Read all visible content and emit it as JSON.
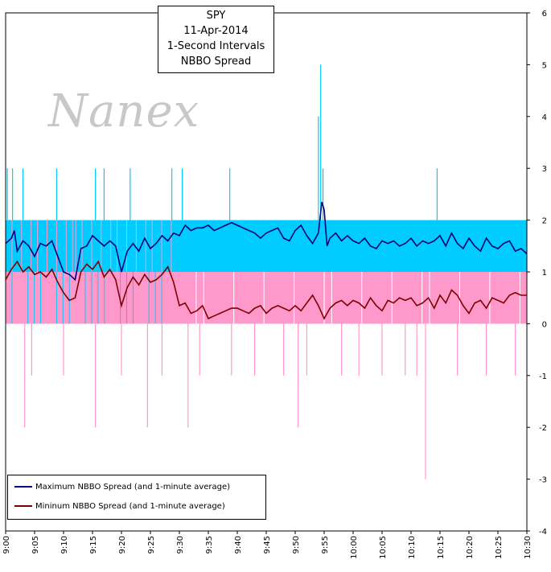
{
  "chart_data": {
    "type": "line",
    "title_lines": [
      "SPY",
      "11-Apr-2014",
      "1-Second Intervals",
      "NBBO Spread"
    ],
    "watermark": "Nanex",
    "x_ticks": [
      "9:00",
      "9:05",
      "9:10",
      "9:15",
      "9:20",
      "9:25",
      "9:30",
      "9:35",
      "9:40",
      "9:45",
      "9:50",
      "9:55",
      "10:00",
      "10:05",
      "10:10",
      "10:15",
      "10:20",
      "10:25",
      "10:30"
    ],
    "y_ticks": [
      "6",
      "5",
      "4",
      "3",
      "2",
      "1",
      "0",
      "-1",
      "-2",
      "-3",
      "-4"
    ],
    "ylim": [
      -4,
      6
    ],
    "xlim_minutes": [
      0,
      90
    ],
    "legend": [
      {
        "name": "Maximum NBBO Spread (and 1-minute average)",
        "color": "#000080"
      },
      {
        "name": "Mininum NBBO Spread (and 1-minute average)",
        "color": "#800000"
      }
    ],
    "band_colors": {
      "max": "#00ccff",
      "min": "#ff99cc"
    },
    "max_spikes": [
      {
        "t": 0.3,
        "v": 3
      },
      {
        "t": 1.2,
        "v": 3
      },
      {
        "t": 3.0,
        "v": 3
      },
      {
        "t": 8.8,
        "v": 3
      },
      {
        "t": 15.5,
        "v": 3
      },
      {
        "t": 17.0,
        "v": 3
      },
      {
        "t": 21.5,
        "v": 3
      },
      {
        "t": 28.7,
        "v": 3
      },
      {
        "t": 30.5,
        "v": 3
      },
      {
        "t": 38.7,
        "v": 3
      },
      {
        "t": 54.0,
        "v": 4
      },
      {
        "t": 54.4,
        "v": 5
      },
      {
        "t": 54.8,
        "v": 3
      },
      {
        "t": 74.5,
        "v": 3
      }
    ],
    "min_spikes": [
      {
        "t": 3.3,
        "v": -2
      },
      {
        "t": 15.5,
        "v": -2
      },
      {
        "t": 24.5,
        "v": -2
      },
      {
        "t": 31.5,
        "v": -2
      },
      {
        "t": 50.5,
        "v": -2
      },
      {
        "t": 72.5,
        "v": -3
      },
      {
        "t": 4.5,
        "v": -1
      },
      {
        "t": 10.0,
        "v": -1
      },
      {
        "t": 20.0,
        "v": -1
      },
      {
        "t": 27.0,
        "v": -1
      },
      {
        "t": 33.5,
        "v": -1
      },
      {
        "t": 39.0,
        "v": -1
      },
      {
        "t": 43.0,
        "v": -1
      },
      {
        "t": 48.0,
        "v": -1
      },
      {
        "t": 52.0,
        "v": -1
      },
      {
        "t": 58.0,
        "v": -1
      },
      {
        "t": 61.0,
        "v": -1
      },
      {
        "t": 65.0,
        "v": -1
      },
      {
        "t": 69.0,
        "v": -1
      },
      {
        "t": 71.0,
        "v": -1
      },
      {
        "t": 78.0,
        "v": -1
      },
      {
        "t": 83.0,
        "v": -1
      },
      {
        "t": 88.0,
        "v": -1
      }
    ],
    "max_avg": [
      [
        0,
        1.55
      ],
      [
        1,
        1.65
      ],
      [
        1.5,
        1.8
      ],
      [
        2,
        1.4
      ],
      [
        3,
        1.6
      ],
      [
        4,
        1.5
      ],
      [
        5,
        1.3
      ],
      [
        6,
        1.55
      ],
      [
        7,
        1.5
      ],
      [
        8,
        1.6
      ],
      [
        9,
        1.3
      ],
      [
        10,
        1.0
      ],
      [
        11,
        0.95
      ],
      [
        12,
        0.85
      ],
      [
        13,
        1.45
      ],
      [
        14,
        1.5
      ],
      [
        15,
        1.7
      ],
      [
        16,
        1.6
      ],
      [
        17,
        1.5
      ],
      [
        18,
        1.6
      ],
      [
        19,
        1.5
      ],
      [
        20,
        1.0
      ],
      [
        21,
        1.4
      ],
      [
        22,
        1.55
      ],
      [
        23,
        1.4
      ],
      [
        24,
        1.65
      ],
      [
        25,
        1.45
      ],
      [
        26,
        1.55
      ],
      [
        27,
        1.7
      ],
      [
        28,
        1.6
      ],
      [
        29,
        1.75
      ],
      [
        30,
        1.7
      ],
      [
        31,
        1.9
      ],
      [
        32,
        1.8
      ],
      [
        33,
        1.85
      ],
      [
        34,
        1.85
      ],
      [
        35,
        1.9
      ],
      [
        36,
        1.8
      ],
      [
        37,
        1.85
      ],
      [
        38,
        1.9
      ],
      [
        39,
        1.95
      ],
      [
        40,
        1.9
      ],
      [
        41,
        1.85
      ],
      [
        42,
        1.8
      ],
      [
        43,
        1.75
      ],
      [
        44,
        1.65
      ],
      [
        45,
        1.75
      ],
      [
        46,
        1.8
      ],
      [
        47,
        1.85
      ],
      [
        48,
        1.65
      ],
      [
        49,
        1.6
      ],
      [
        50,
        1.8
      ],
      [
        51,
        1.9
      ],
      [
        52,
        1.7
      ],
      [
        53,
        1.55
      ],
      [
        54,
        1.75
      ],
      [
        54.6,
        2.35
      ],
      [
        55,
        2.2
      ],
      [
        55.5,
        1.5
      ],
      [
        56,
        1.65
      ],
      [
        57,
        1.75
      ],
      [
        58,
        1.6
      ],
      [
        59,
        1.7
      ],
      [
        60,
        1.6
      ],
      [
        61,
        1.55
      ],
      [
        62,
        1.65
      ],
      [
        63,
        1.5
      ],
      [
        64,
        1.45
      ],
      [
        65,
        1.6
      ],
      [
        66,
        1.55
      ],
      [
        67,
        1.6
      ],
      [
        68,
        1.5
      ],
      [
        69,
        1.55
      ],
      [
        70,
        1.65
      ],
      [
        71,
        1.5
      ],
      [
        72,
        1.6
      ],
      [
        73,
        1.55
      ],
      [
        74,
        1.6
      ],
      [
        75,
        1.7
      ],
      [
        76,
        1.5
      ],
      [
        77,
        1.75
      ],
      [
        78,
        1.55
      ],
      [
        79,
        1.45
      ],
      [
        80,
        1.65
      ],
      [
        81,
        1.5
      ],
      [
        82,
        1.4
      ],
      [
        83,
        1.65
      ],
      [
        84,
        1.5
      ],
      [
        85,
        1.45
      ],
      [
        86,
        1.55
      ],
      [
        87,
        1.6
      ],
      [
        88,
        1.4
      ],
      [
        89,
        1.45
      ],
      [
        90,
        1.35
      ]
    ],
    "min_avg": [
      [
        0,
        0.85
      ],
      [
        1,
        1.05
      ],
      [
        2,
        1.2
      ],
      [
        3,
        1.0
      ],
      [
        4,
        1.1
      ],
      [
        5,
        0.95
      ],
      [
        6,
        1.0
      ],
      [
        7,
        0.9
      ],
      [
        8,
        1.05
      ],
      [
        9,
        0.8
      ],
      [
        10,
        0.6
      ],
      [
        11,
        0.45
      ],
      [
        12,
        0.5
      ],
      [
        13,
        1.0
      ],
      [
        14,
        1.15
      ],
      [
        15,
        1.05
      ],
      [
        16,
        1.2
      ],
      [
        17,
        0.9
      ],
      [
        18,
        1.05
      ],
      [
        19,
        0.85
      ],
      [
        20,
        0.35
      ],
      [
        21,
        0.7
      ],
      [
        22,
        0.9
      ],
      [
        23,
        0.75
      ],
      [
        24,
        0.95
      ],
      [
        25,
        0.8
      ],
      [
        26,
        0.85
      ],
      [
        27,
        0.95
      ],
      [
        28,
        1.1
      ],
      [
        29,
        0.8
      ],
      [
        30,
        0.35
      ],
      [
        31,
        0.4
      ],
      [
        32,
        0.2
      ],
      [
        33,
        0.25
      ],
      [
        34,
        0.35
      ],
      [
        35,
        0.1
      ],
      [
        36,
        0.15
      ],
      [
        37,
        0.2
      ],
      [
        38,
        0.25
      ],
      [
        39,
        0.3
      ],
      [
        40,
        0.3
      ],
      [
        41,
        0.25
      ],
      [
        42,
        0.2
      ],
      [
        43,
        0.3
      ],
      [
        44,
        0.35
      ],
      [
        45,
        0.2
      ],
      [
        46,
        0.3
      ],
      [
        47,
        0.35
      ],
      [
        48,
        0.3
      ],
      [
        49,
        0.25
      ],
      [
        50,
        0.35
      ],
      [
        51,
        0.25
      ],
      [
        52,
        0.4
      ],
      [
        53,
        0.55
      ],
      [
        54,
        0.35
      ],
      [
        55,
        0.1
      ],
      [
        56,
        0.3
      ],
      [
        57,
        0.4
      ],
      [
        58,
        0.45
      ],
      [
        59,
        0.35
      ],
      [
        60,
        0.45
      ],
      [
        61,
        0.4
      ],
      [
        62,
        0.3
      ],
      [
        63,
        0.5
      ],
      [
        64,
        0.35
      ],
      [
        65,
        0.25
      ],
      [
        66,
        0.45
      ],
      [
        67,
        0.4
      ],
      [
        68,
        0.5
      ],
      [
        69,
        0.45
      ],
      [
        70,
        0.5
      ],
      [
        71,
        0.35
      ],
      [
        72,
        0.4
      ],
      [
        73,
        0.5
      ],
      [
        74,
        0.3
      ],
      [
        75,
        0.55
      ],
      [
        76,
        0.4
      ],
      [
        77,
        0.65
      ],
      [
        78,
        0.55
      ],
      [
        79,
        0.35
      ],
      [
        80,
        0.2
      ],
      [
        81,
        0.4
      ],
      [
        82,
        0.45
      ],
      [
        83,
        0.3
      ],
      [
        84,
        0.5
      ],
      [
        85,
        0.45
      ],
      [
        86,
        0.4
      ],
      [
        87,
        0.55
      ],
      [
        88,
        0.6
      ],
      [
        89,
        0.55
      ],
      [
        90,
        0.55
      ]
    ]
  }
}
